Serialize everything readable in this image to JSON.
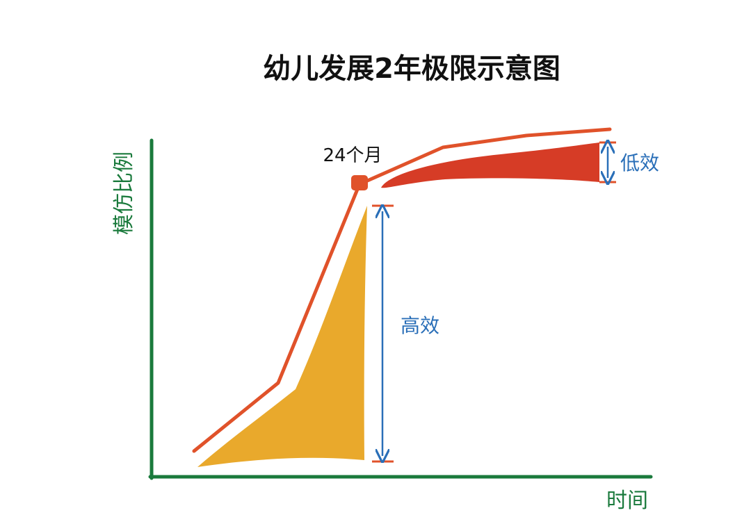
{
  "title": "幼儿发展2年极限示意图",
  "axes": {
    "x_label": "时间",
    "y_label": "模仿比例"
  },
  "milestone_label": "24个月",
  "regions": {
    "high_efficiency_label": "高效",
    "low_efficiency_label": "低效"
  },
  "colors": {
    "axis": "#1a7a3c",
    "curve": "#e0522a",
    "high_fill": "#e9a92c",
    "low_fill": "#d63c26",
    "arrow": "#2a6fb8",
    "marker": "#e0522a"
  }
}
